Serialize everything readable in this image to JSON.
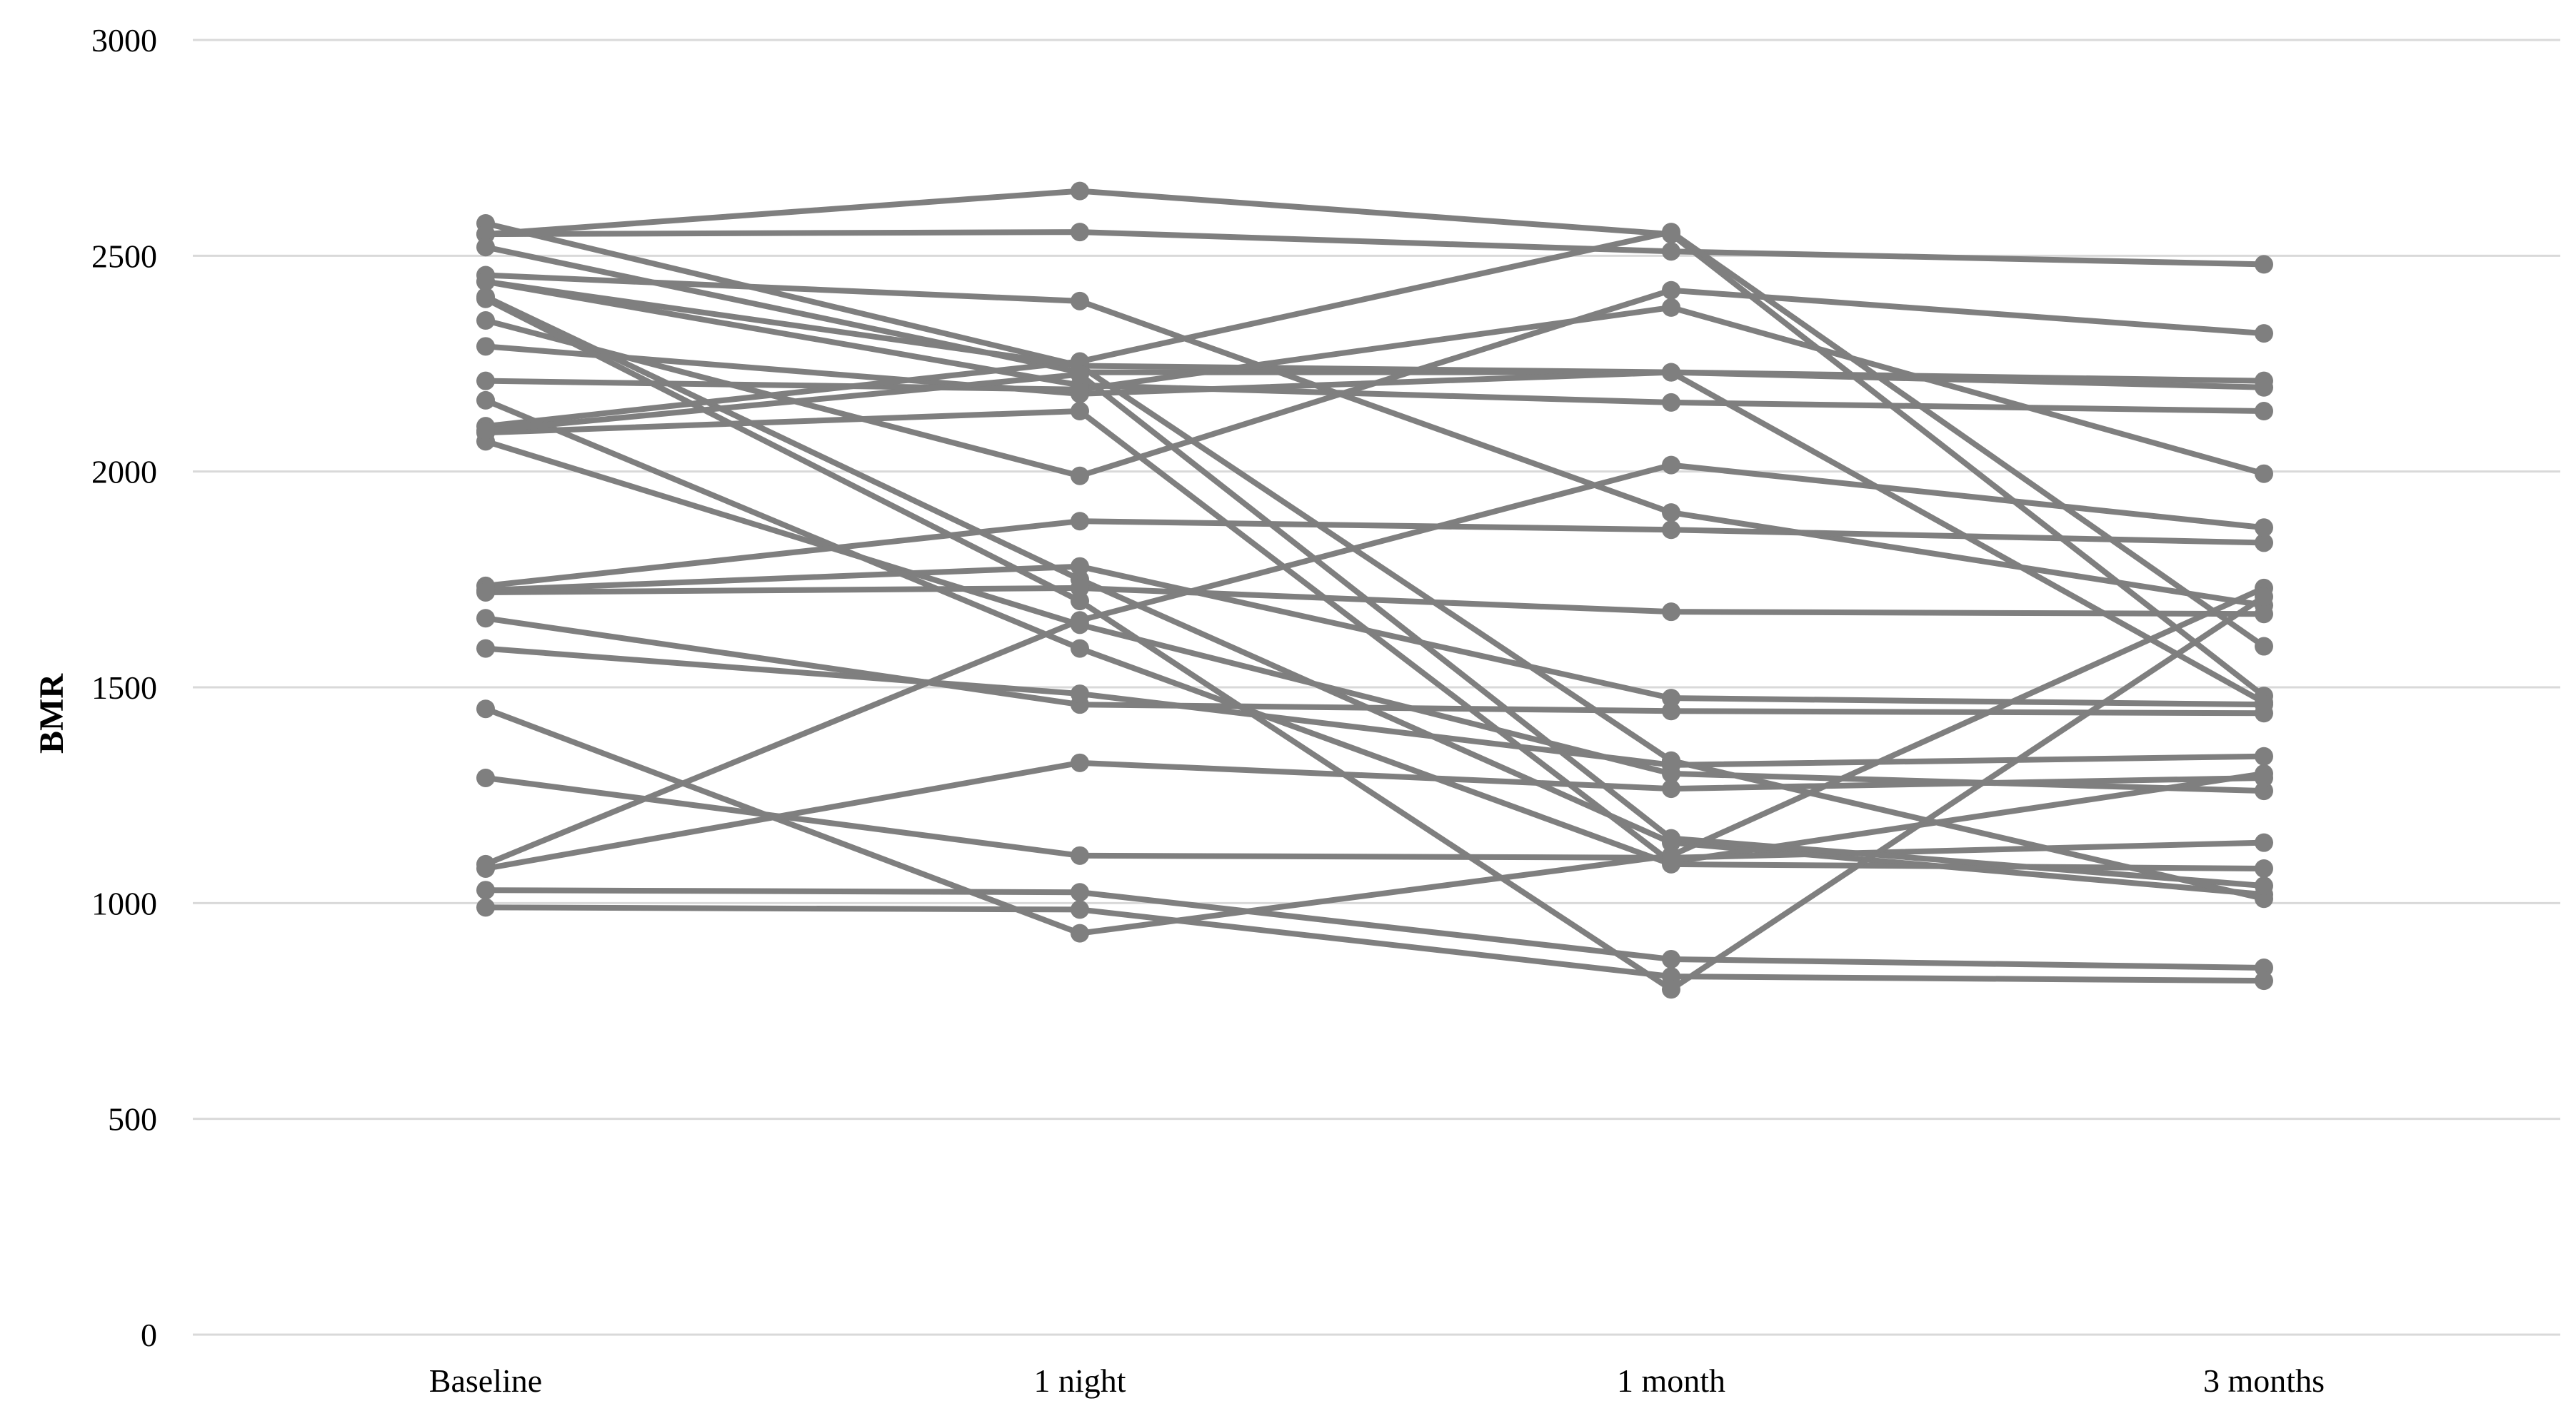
{
  "chart_data": {
    "type": "line",
    "title": "",
    "xlabel": "",
    "ylabel": "BMR",
    "categories": [
      "Baseline",
      "1 night",
      "1 month",
      "3 months"
    ],
    "ylim": [
      0,
      3000
    ],
    "yticks": [
      0,
      500,
      1000,
      1500,
      2000,
      2500,
      3000
    ],
    "grid": true,
    "legend": "none",
    "series_color": "#7f7f7f",
    "gridline_color": "#d9d9d9",
    "series": [
      {
        "values": [
          2575,
          2245,
          2230,
          1465
        ]
      },
      {
        "values": [
          2550,
          2650,
          2550,
          1480
        ]
      },
      {
        "values": [
          2550,
          2555,
          2510,
          2480
        ]
      },
      {
        "values": [
          2520,
          2230,
          2230,
          2210
        ]
      },
      {
        "values": [
          2455,
          2395,
          1905,
          1690
        ]
      },
      {
        "values": [
          2440,
          2200,
          2160,
          2140
        ]
      },
      {
        "values": [
          2405,
          1750,
          1140,
          1020
        ]
      },
      {
        "values": [
          2350,
          1990,
          2420,
          2320
        ]
      },
      {
        "values": [
          2290,
          2180,
          2230,
          2195
        ]
      },
      {
        "values": [
          2210,
          2190,
          2380,
          1995
        ]
      },
      {
        "values": [
          2105,
          2255,
          2555,
          1595
        ]
      },
      {
        "values": [
          2090,
          2140,
          1095,
          1300
        ]
      },
      {
        "values": [
          2070,
          1645,
          1300,
          1260
        ]
      },
      {
        "values": [
          2165,
          1590,
          1090,
          1080
        ]
      },
      {
        "values": [
          1735,
          1885,
          1865,
          1835
        ]
      },
      {
        "values": [
          1725,
          1780,
          1475,
          1460
        ]
      },
      {
        "values": [
          1720,
          1730,
          1675,
          1670
        ]
      },
      {
        "values": [
          1660,
          1460,
          1445,
          1440
        ]
      },
      {
        "values": [
          1590,
          1485,
          1320,
          1340
        ]
      },
      {
        "values": [
          1450,
          930,
          1110,
          1730
        ]
      },
      {
        "values": [
          1290,
          1110,
          1105,
          1140
        ]
      },
      {
        "values": [
          1090,
          1655,
          2015,
          1870
        ]
      },
      {
        "values": [
          1080,
          1325,
          1265,
          1290
        ]
      },
      {
        "values": [
          1030,
          1025,
          870,
          850
        ]
      },
      {
        "values": [
          990,
          985,
          830,
          820
        ]
      },
      {
        "values": [
          2400,
          1700,
          800,
          1710
        ]
      },
      {
        "values": [
          2440,
          2245,
          1330,
          1010
        ]
      },
      {
        "values": [
          2095,
          2225,
          1150,
          1040
        ]
      }
    ]
  }
}
